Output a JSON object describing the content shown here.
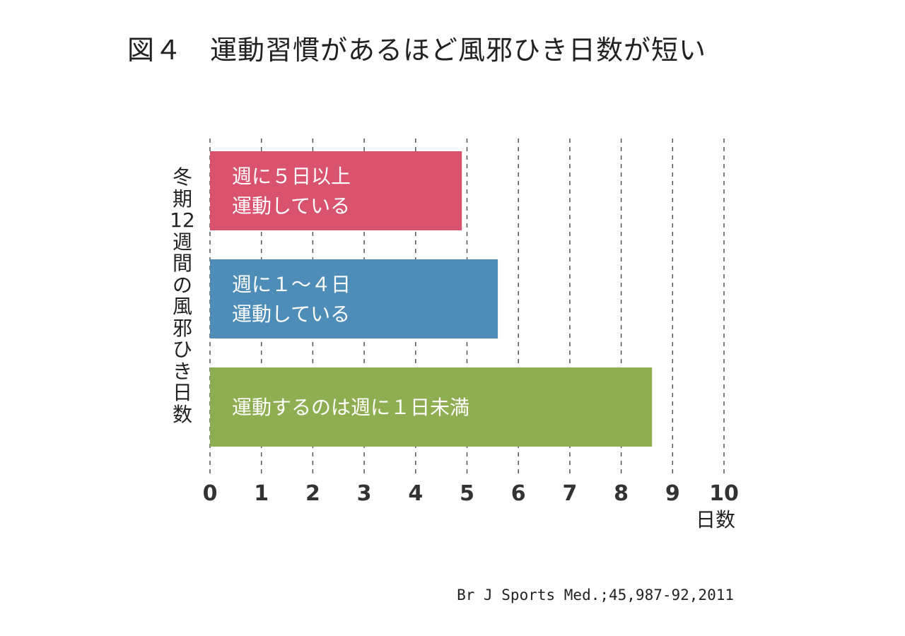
{
  "title": "図４　運動習慣があるほど風邪ひき日数が短い",
  "source": "Br J Sports Med.;45,987-92,2011",
  "chart_data": {
    "type": "bar",
    "orientation": "horizontal",
    "ylabel": "冬期\n12\n週間\nの\n風邪\nひき\n日数",
    "xlabel": "日数",
    "xlim": [
      0,
      10
    ],
    "xticks": [
      "0",
      "1",
      "2",
      "3",
      "4",
      "5",
      "6",
      "7",
      "8",
      "9",
      "10"
    ],
    "grid": "vertical dashed",
    "categories": [
      [
        "週に５日以上",
        "運動している"
      ],
      [
        "週に１〜４日",
        "運動している"
      ],
      [
        "運動するのは週に１日未満"
      ]
    ],
    "values": [
      4.9,
      5.6,
      8.6
    ],
    "colors": [
      "#d9536e",
      "#4f8db9",
      "#8fae52"
    ]
  }
}
